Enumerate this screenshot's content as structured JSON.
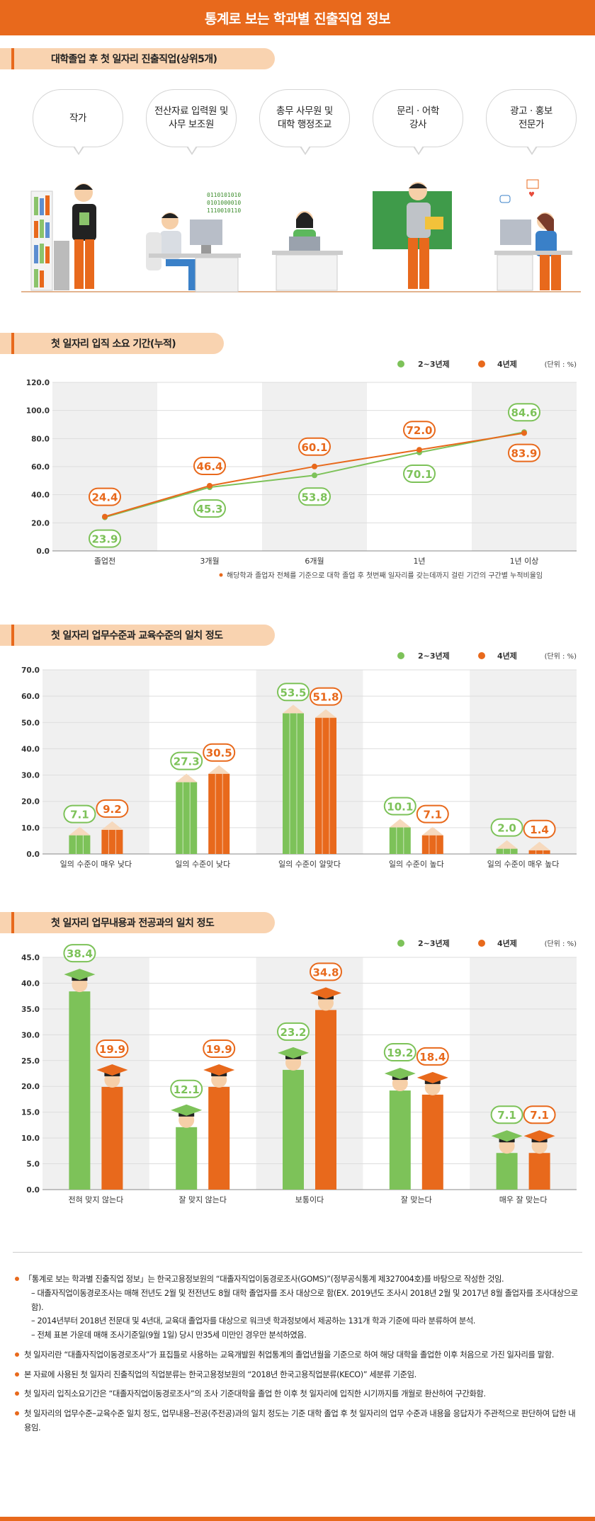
{
  "page_title": "통계로 보는 학과별 진출직업 정보",
  "sections": {
    "jobs_title": "대학졸업 후 첫 일자리 진출직업(상위5개)",
    "period_title": "첫 일자리 입직 소요 기간(누적)",
    "level_title": "첫 일자리 업무수준과 교육수준의 일치 정도",
    "content_title": "첫 일자리 업무내용과 전공과의 일치 정도"
  },
  "jobs": [
    {
      "label": "작가"
    },
    {
      "label": "전산자료 입력원 및\n사무 보조원"
    },
    {
      "label": "총무 사무원 및\n대학 행정조교"
    },
    {
      "label": "문리 · 어학\n강사"
    },
    {
      "label": "광고 · 홍보\n전문가"
    }
  ],
  "binary_text": "0110101010\n0101000010\n1110010110",
  "legend": {
    "s1": "2~3년제",
    "s2": "4년제",
    "unit": "(단위 : %)"
  },
  "colors": {
    "orange": "#e8691c",
    "green": "#7dc259",
    "band": "#f0f0f0"
  },
  "chart_data": [
    {
      "type": "line",
      "title": "첫 일자리 입직 소요 기간(누적)",
      "categories": [
        "졸업전",
        "3개월",
        "6개월",
        "1년",
        "1년 이상"
      ],
      "ylim": [
        0,
        120
      ],
      "yticks": [
        "0.0",
        "20.0",
        "40.0",
        "60.0",
        "80.0",
        "100.0",
        "120.0"
      ],
      "series": [
        {
          "name": "2~3년제",
          "values": [
            23.9,
            45.3,
            53.8,
            70.1,
            84.6
          ],
          "labels": [
            "23.9",
            "45.3",
            "53.8",
            "70.1",
            "84.6"
          ]
        },
        {
          "name": "4년제",
          "values": [
            24.4,
            46.4,
            60.1,
            72.0,
            83.9
          ],
          "labels": [
            "24.4",
            "46.4",
            "60.1",
            "72.0",
            "83.9"
          ]
        }
      ],
      "footnote": "해당학과 졸업자 전체를 기준으로 대학 졸업 후 첫번째 일자리를 갖는데까지 걸린 기간의 구간별 누적비율임"
    },
    {
      "type": "bar",
      "title": "첫 일자리 업무수준과 교육수준의 일치 정도",
      "categories": [
        "일의 수준이 매우 낮다",
        "일의 수준이 낮다",
        "일의 수준이 알맞다",
        "일의 수준이 높다",
        "일의 수준이 매우 높다"
      ],
      "ylim": [
        0,
        70
      ],
      "yticks": [
        "0.0",
        "10.0",
        "20.0",
        "30.0",
        "40.0",
        "50.0",
        "60.0",
        "70.0"
      ],
      "series": [
        {
          "name": "2~3년제",
          "values": [
            7.1,
            27.3,
            53.5,
            10.1,
            2.0
          ],
          "labels": [
            "7.1",
            "27.3",
            "53.5",
            "10.1",
            "2.0"
          ]
        },
        {
          "name": "4년제",
          "values": [
            9.2,
            30.5,
            51.8,
            7.1,
            1.4
          ],
          "labels": [
            "9.2",
            "30.5",
            "51.8",
            "7.1",
            "1.4"
          ]
        }
      ]
    },
    {
      "type": "bar",
      "title": "첫 일자리 업무내용과 전공과의 일치 정도",
      "categories": [
        "전혀 맞지 않는다",
        "잘 맞지 않는다",
        "보통이다",
        "잘 맞는다",
        "매우 잘 맞는다"
      ],
      "ylim": [
        0,
        45
      ],
      "yticks": [
        "0.0",
        "5.0",
        "10.0",
        "15.0",
        "20.0",
        "25.0",
        "30.0",
        "35.0",
        "40.0",
        "45.0"
      ],
      "series": [
        {
          "name": "2~3년제",
          "values": [
            38.4,
            12.1,
            23.2,
            19.2,
            7.1
          ],
          "labels": [
            "38.4",
            "12.1",
            "23.2",
            "19.2",
            "7.1"
          ]
        },
        {
          "name": "4년제",
          "values": [
            19.9,
            19.9,
            34.8,
            18.4,
            7.1
          ],
          "labels": [
            "19.9",
            "19.9",
            "34.8",
            "18.4",
            "7.1"
          ]
        }
      ]
    }
  ],
  "notes": [
    {
      "text": "「통계로 보는 학과별 진출직업 정보」는 한국고용정보원의 “대졸자직업이동경로조사(GOMS)”(정부공식통계 제327004호)를 바탕으로 작성한 것임.",
      "subs": [
        "– 대졸자직업이동경로조사는 매해 전년도 2월 및 전전년도 8월 대학 졸업자를 조사 대상으로 함(EX. 2019년도 조사시 2018년 2월 및 2017년 8월 졸업자를 조사대상으로 함).",
        "– 2014년부터 2018년 전문대 및 4년대, 교육대 졸업자를 대상으로 워크넷 학과정보에서 제공하는 131개 학과 기준에 따라 분류하여 분석.",
        "– 전체 표본 가운데 매해 조사기준일(9월 1일) 당시 만35세 미만인 경우만 분석하였음."
      ]
    },
    {
      "text": "첫 일자리란 “대졸자직업이동경로조사”가 표집틀로 사용하는 교육개발원 취업통계의 졸업년월을 기준으로 하여 해당 대학을 졸업한 이후 처음으로 가진 일자리를 말함.",
      "subs": []
    },
    {
      "text": "본 자료에 사용된 첫 일자리 진출직업의 직업분류는 한국고용정보원의 “2018년 한국고용직업분류(KECO)” 세분류 기준임.",
      "subs": []
    },
    {
      "text": "첫 일자리 입직소요기간은 “대졸자직업이동경로조사”의 조사 기준대학을 졸업 한 이후 첫 일자리에 입직한 시기까지를 개월로 환산하여 구간화함.",
      "subs": []
    },
    {
      "text": "첫 일자리의 업무수준–교육수준 일치 정도, 업무내용–전공(주전공)과의 일치 정도는 기준 대학 졸업 후 첫 일자리의 업무 수준과 내용을 응답자가 주관적으로 판단하여 답한 내용임.",
      "subs": []
    }
  ]
}
